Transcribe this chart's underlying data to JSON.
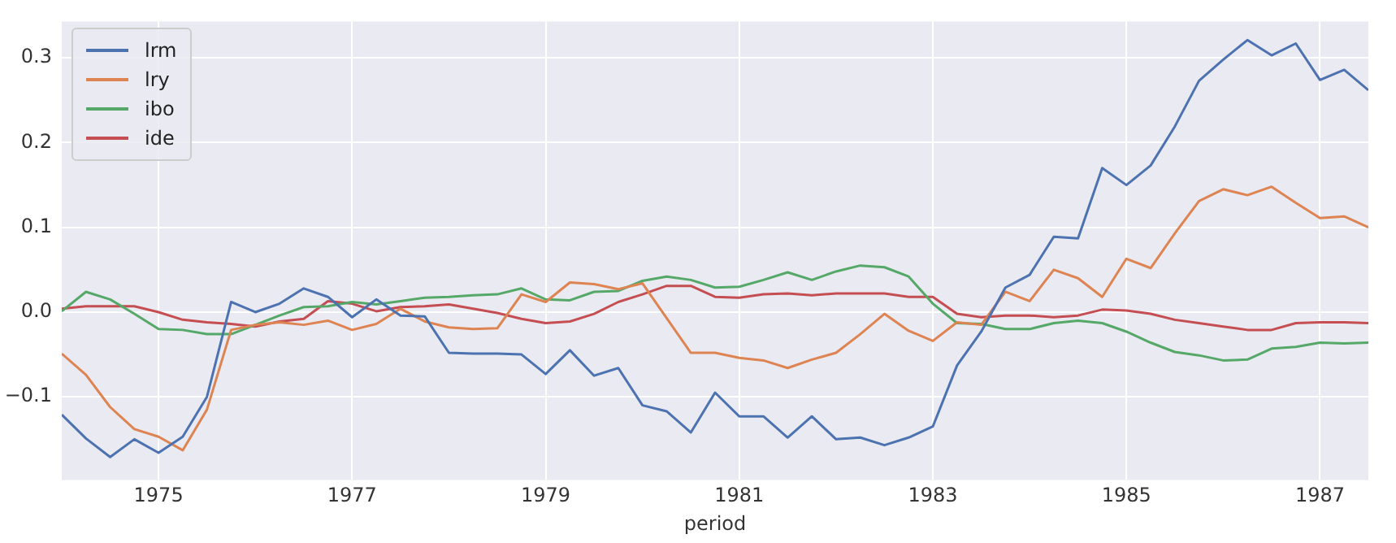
{
  "chart_data": {
    "type": "line",
    "xlabel": "period",
    "x": [
      1974,
      1974.25,
      1974.5,
      1974.75,
      1975,
      1975.25,
      1975.5,
      1975.75,
      1976,
      1976.25,
      1976.5,
      1976.75,
      1977,
      1977.25,
      1977.5,
      1977.75,
      1978,
      1978.25,
      1978.5,
      1978.75,
      1979,
      1979.25,
      1979.5,
      1979.75,
      1980,
      1980.25,
      1980.5,
      1980.75,
      1981,
      1981.25,
      1981.5,
      1981.75,
      1982,
      1982.25,
      1982.5,
      1982.75,
      1983,
      1983.25,
      1983.5,
      1983.75,
      1984,
      1984.25,
      1984.5,
      1984.75,
      1985,
      1985.25,
      1985.5,
      1985.75,
      1986,
      1986.25,
      1986.5,
      1986.75,
      1987,
      1987.25,
      1987.5
    ],
    "series": [
      {
        "name": "lrm",
        "color": "#4c72b0",
        "values": [
          -0.121,
          -0.149,
          -0.171,
          -0.15,
          -0.166,
          -0.147,
          -0.1,
          0.012,
          0.0,
          0.01,
          0.028,
          0.018,
          -0.006,
          0.015,
          -0.004,
          -0.005,
          -0.048,
          -0.049,
          -0.049,
          -0.05,
          -0.073,
          -0.045,
          -0.075,
          -0.066,
          -0.11,
          -0.117,
          -0.142,
          -0.095,
          -0.123,
          -0.123,
          -0.148,
          -0.123,
          -0.15,
          -0.148,
          -0.157,
          -0.148,
          -0.135,
          -0.063,
          -0.023,
          0.029,
          0.044,
          0.089,
          0.087,
          0.17,
          0.15,
          0.173,
          0.219,
          0.273,
          0.298,
          0.321,
          0.303,
          0.317,
          0.274,
          0.286,
          0.262
        ]
      },
      {
        "name": "lry",
        "color": "#dd8452",
        "values": [
          -0.049,
          -0.074,
          -0.112,
          -0.138,
          -0.147,
          -0.163,
          -0.115,
          -0.021,
          -0.015,
          -0.012,
          -0.015,
          -0.01,
          -0.021,
          -0.014,
          0.004,
          -0.011,
          -0.018,
          -0.02,
          -0.019,
          0.021,
          0.012,
          0.035,
          0.033,
          0.027,
          0.034,
          -0.007,
          -0.048,
          -0.048,
          -0.054,
          -0.057,
          -0.066,
          -0.056,
          -0.048,
          -0.026,
          -0.002,
          -0.022,
          -0.034,
          -0.012,
          -0.015,
          0.024,
          0.013,
          0.05,
          0.04,
          0.018,
          0.063,
          0.052,
          0.093,
          0.131,
          0.145,
          0.138,
          0.148,
          0.129,
          0.111,
          0.113,
          0.1
        ]
      },
      {
        "name": "ibo",
        "color": "#55a868",
        "values": [
          0.001,
          0.024,
          0.015,
          -0.002,
          -0.02,
          -0.021,
          -0.026,
          -0.026,
          -0.015,
          -0.004,
          0.006,
          0.007,
          0.012,
          0.009,
          0.013,
          0.017,
          0.018,
          0.02,
          0.021,
          0.028,
          0.015,
          0.014,
          0.024,
          0.025,
          0.037,
          0.042,
          0.038,
          0.029,
          0.03,
          0.038,
          0.047,
          0.038,
          0.048,
          0.055,
          0.053,
          0.042,
          0.01,
          -0.013,
          -0.014,
          -0.02,
          -0.02,
          -0.013,
          -0.01,
          -0.013,
          -0.023,
          -0.036,
          -0.047,
          -0.051,
          -0.057,
          -0.056,
          -0.043,
          -0.041,
          -0.036,
          -0.037,
          -0.036
        ]
      },
      {
        "name": "ide",
        "color": "#c44e52",
        "values": [
          0.004,
          0.007,
          0.007,
          0.007,
          0.0,
          -0.009,
          -0.012,
          -0.014,
          -0.017,
          -0.011,
          -0.008,
          0.013,
          0.01,
          0.001,
          0.006,
          0.007,
          0.009,
          0.004,
          -0.001,
          -0.008,
          -0.013,
          -0.011,
          -0.002,
          0.012,
          0.021,
          0.031,
          0.031,
          0.018,
          0.017,
          0.021,
          0.022,
          0.02,
          0.022,
          0.022,
          0.022,
          0.018,
          0.018,
          -0.002,
          -0.006,
          -0.004,
          -0.004,
          -0.006,
          -0.004,
          0.003,
          0.002,
          -0.002,
          -0.009,
          -0.013,
          -0.017,
          -0.021,
          -0.021,
          -0.013,
          -0.012,
          -0.012,
          -0.013
        ]
      }
    ],
    "xlim": [
      1974,
      1987.5
    ],
    "xticks": [
      1975,
      1977,
      1979,
      1981,
      1983,
      1985,
      1987
    ],
    "ylim": [
      -0.198,
      0.343
    ],
    "yticks": [
      {
        "value": -0.1,
        "label": "−0.1"
      },
      {
        "value": 0,
        "label": "0.0"
      },
      {
        "value": 0.1,
        "label": "0.1"
      },
      {
        "value": 0.2,
        "label": "0.2"
      },
      {
        "value": 0.3,
        "label": "0.3"
      }
    ],
    "grid": true,
    "legend": "top left",
    "marker": "none",
    "line_style": "solid"
  }
}
